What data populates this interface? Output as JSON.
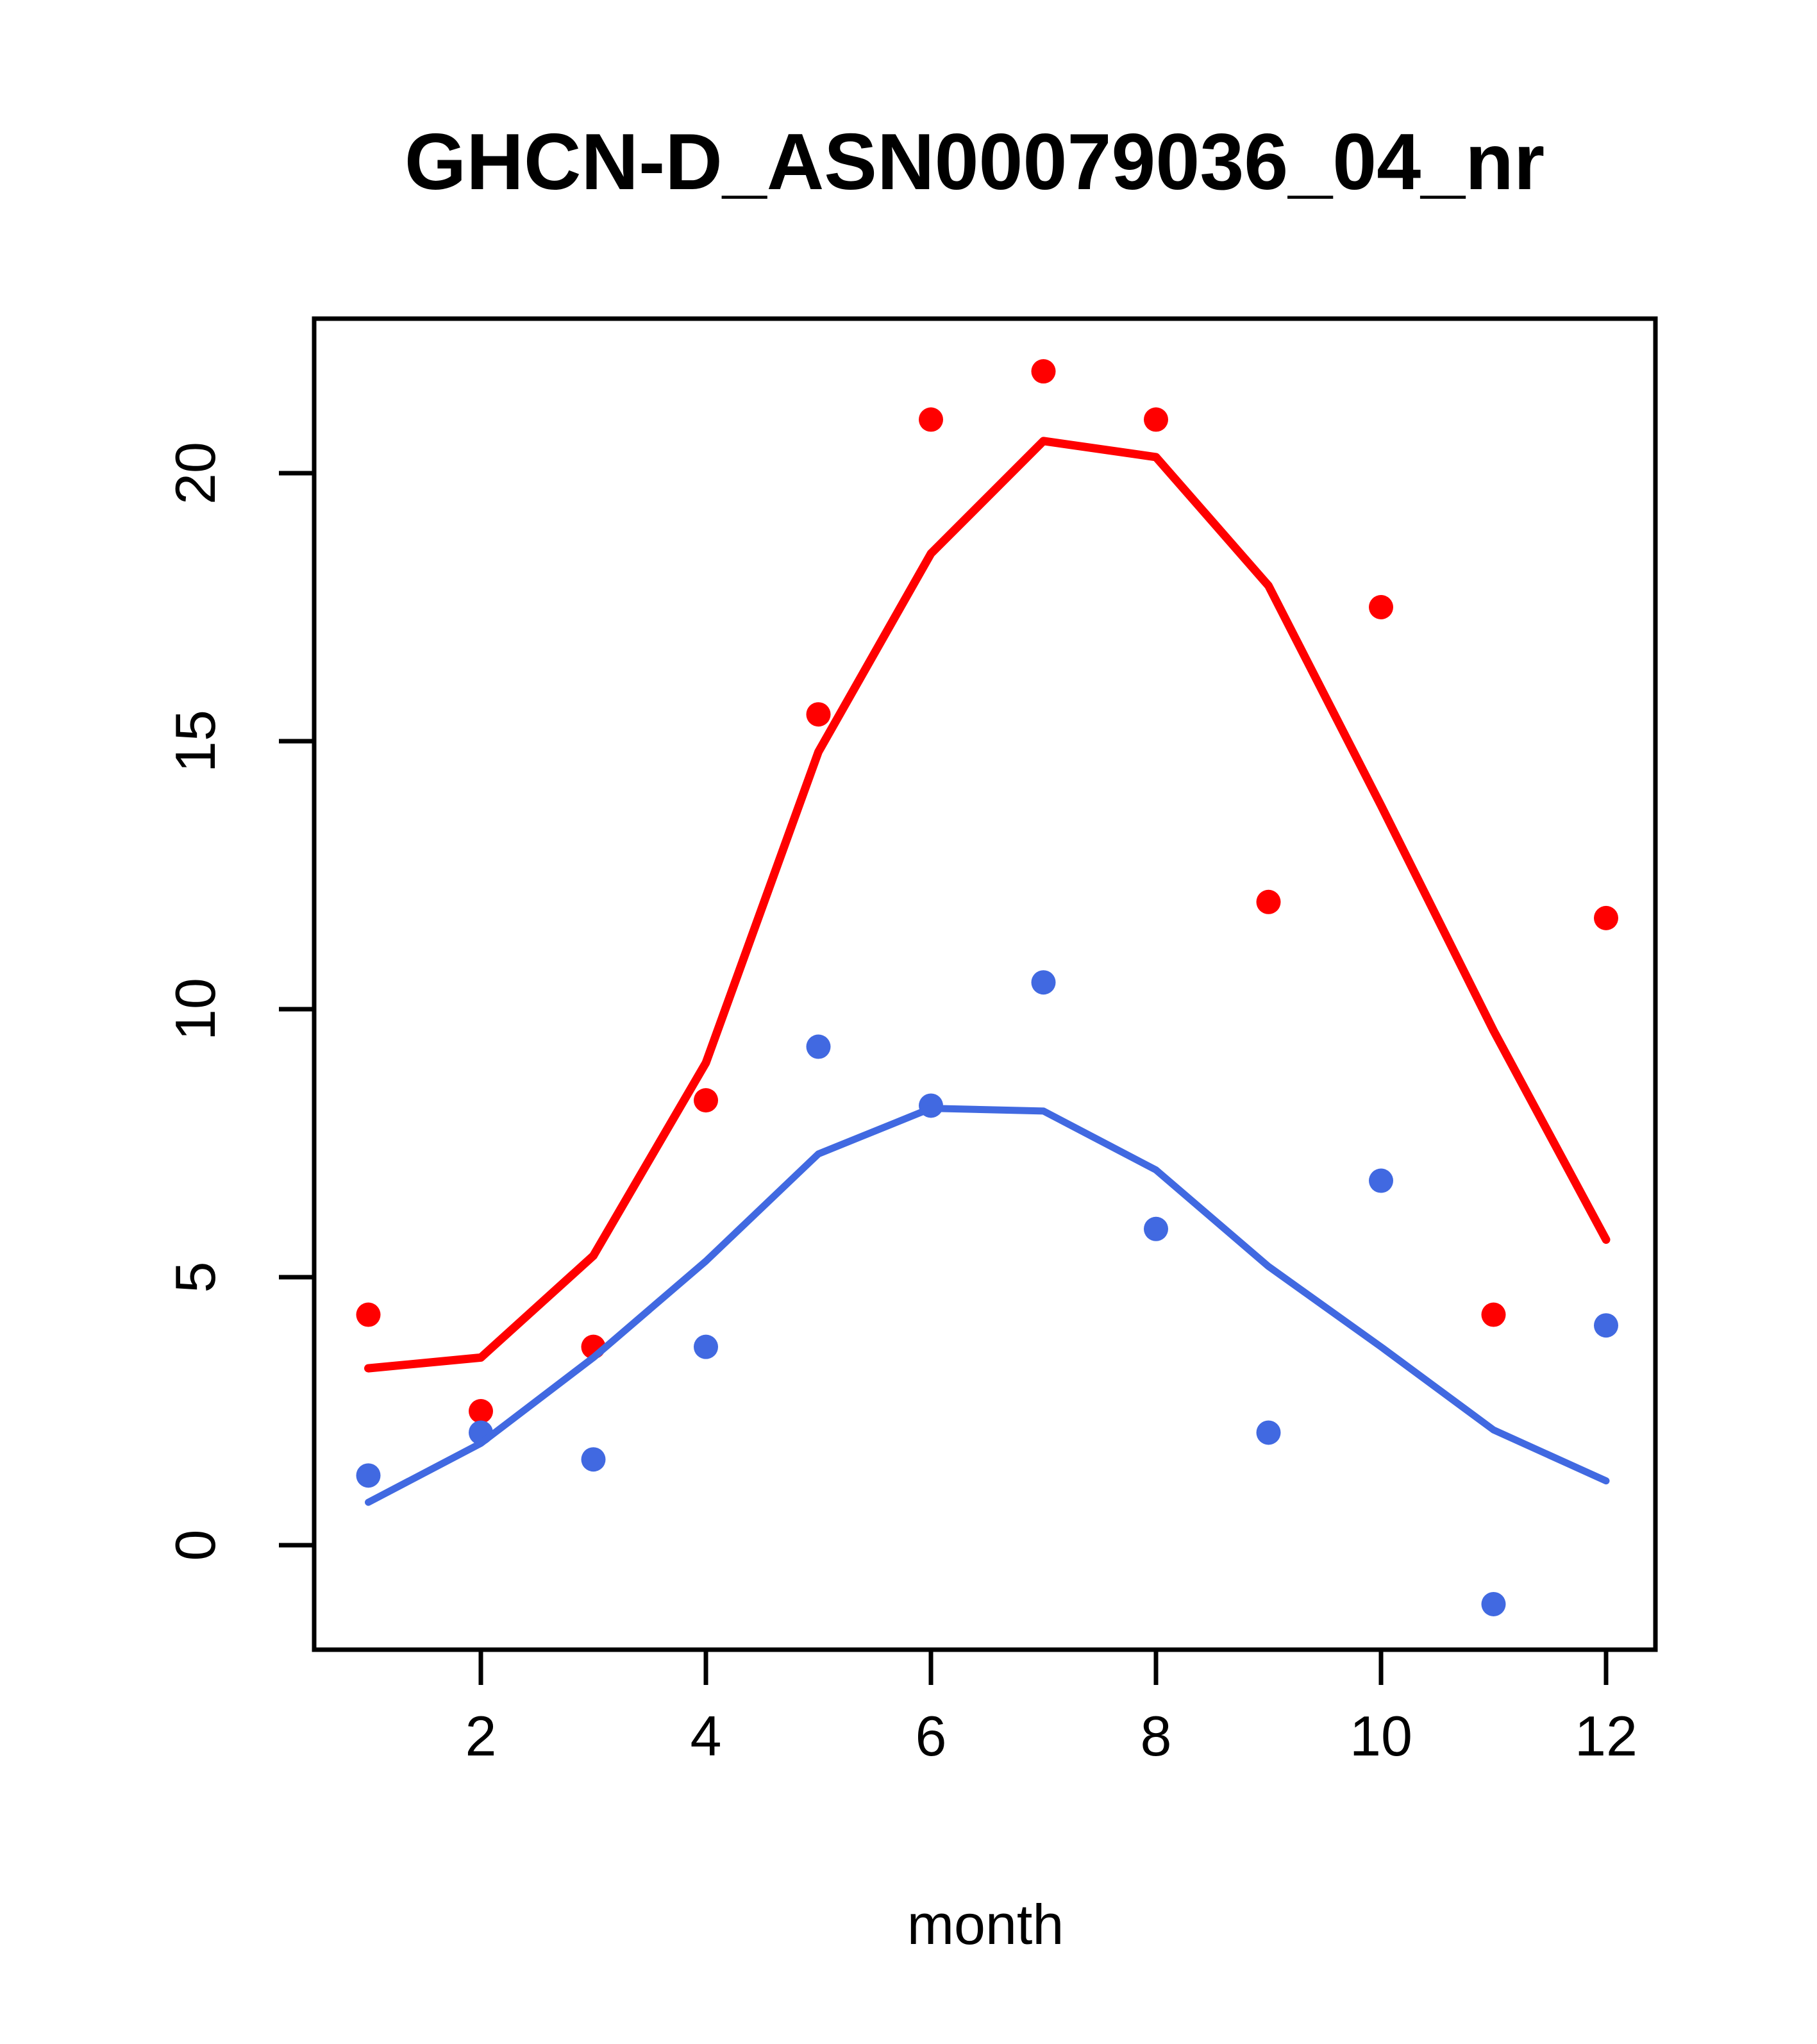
{
  "chart_data": {
    "type": "scatter",
    "title": "GHCN-D_ASN00079036_04_nr",
    "xlabel": "month",
    "ylabel": "",
    "x_ticks": [
      2,
      4,
      6,
      8,
      10,
      12
    ],
    "y_ticks": [
      0,
      5,
      10,
      15,
      20
    ],
    "xlim": [
      0.56,
      12.44
    ],
    "ylim": [
      -1.95,
      22.9
    ],
    "grid": false,
    "legend": "none",
    "x": [
      1,
      2,
      3,
      4,
      5,
      6,
      7,
      8,
      9,
      10,
      11,
      12
    ],
    "series": [
      {
        "name": "red-points",
        "kind": "points",
        "color": "#FF0000",
        "values": [
          4.3,
          2.5,
          3.7,
          8.3,
          15.5,
          21.0,
          21.9,
          21.0,
          12.0,
          17.5,
          4.3,
          11.7
        ]
      },
      {
        "name": "blue-points",
        "kind": "points",
        "color": "#4169E1",
        "values": [
          1.3,
          2.1,
          1.6,
          3.7,
          9.3,
          8.2,
          10.5,
          5.9,
          2.1,
          6.8,
          -1.1,
          4.1
        ]
      },
      {
        "name": "red-smooth-line",
        "kind": "line",
        "color": "#FF0000",
        "values": [
          3.3,
          3.5,
          5.4,
          9.0,
          14.8,
          18.5,
          20.6,
          20.3,
          17.9,
          13.8,
          9.6,
          5.7
        ]
      },
      {
        "name": "blue-smooth-line",
        "kind": "line",
        "color": "#4169E1",
        "values": [
          0.8,
          1.9,
          3.5,
          5.3,
          7.3,
          8.15,
          8.1,
          7.0,
          5.2,
          3.7,
          2.15,
          1.2
        ]
      }
    ],
    "colors": {
      "red_series": "#FF0000",
      "blue_series": "#4169E1",
      "frame": "#000000"
    }
  }
}
